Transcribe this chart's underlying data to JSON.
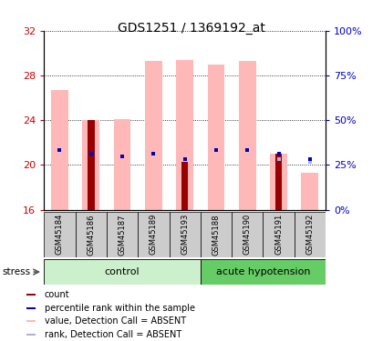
{
  "title": "GDS1251 / 1369192_at",
  "samples": [
    "GSM45184",
    "GSM45186",
    "GSM45187",
    "GSM45189",
    "GSM45193",
    "GSM45188",
    "GSM45190",
    "GSM45191",
    "GSM45192"
  ],
  "ylim_left": [
    16,
    32
  ],
  "ylim_right": [
    0,
    100
  ],
  "yticks_left": [
    16,
    20,
    24,
    28,
    32
  ],
  "yticks_right": [
    0,
    25,
    50,
    75,
    100
  ],
  "ytick_labels_right": [
    "0%",
    "25%",
    "50%",
    "75%",
    "100%"
  ],
  "pink_bar_tops": [
    26.7,
    24.0,
    24.1,
    29.3,
    29.4,
    29.0,
    29.3,
    21.0,
    19.3
  ],
  "red_bar_tops": [
    16.0,
    24.0,
    16.0,
    16.0,
    20.3,
    16.0,
    16.0,
    21.0,
    16.0
  ],
  "blue_sq_y": [
    21.3,
    21.0,
    20.8,
    21.0,
    20.5,
    21.3,
    21.3,
    21.0,
    20.5
  ],
  "lblue_sq_y": [
    21.3,
    21.0,
    20.8,
    21.0,
    null,
    21.3,
    21.3,
    20.5,
    20.3
  ],
  "pink_color": "#ffb8b8",
  "red_color": "#990000",
  "blue_color": "#0000bb",
  "lblue_color": "#aab0dd",
  "pink_bar_width": 0.55,
  "red_bar_width": 0.22,
  "sq_size": 3.5,
  "control_bg": "#ccf0cc",
  "hypotension_bg": "#66cc66",
  "sample_bg": "#cccccc",
  "left_tick_color": "#cc0000",
  "right_tick_color": "#0000cc",
  "legend_items": [
    {
      "color": "#990000",
      "label": "count"
    },
    {
      "color": "#0000bb",
      "label": "percentile rank within the sample"
    },
    {
      "color": "#ffb8b8",
      "label": "value, Detection Call = ABSENT"
    },
    {
      "color": "#aab0dd",
      "label": "rank, Detection Call = ABSENT"
    }
  ]
}
